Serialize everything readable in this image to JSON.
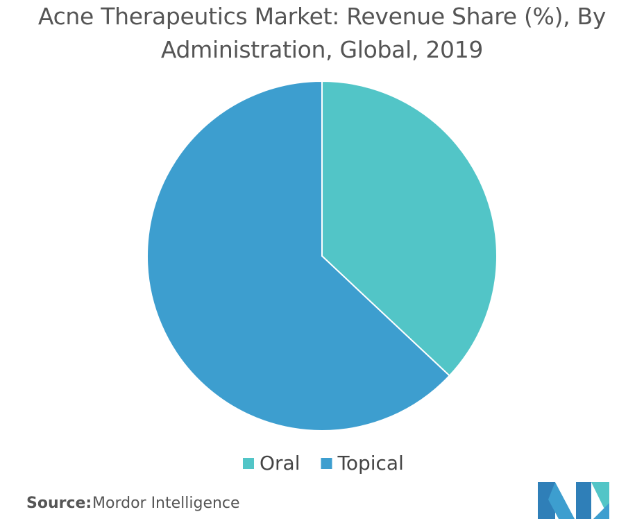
{
  "chart_data": {
    "type": "pie",
    "title": "Acne Therapeutics Market: Revenue Share (%), By Administration, Global, 2019",
    "categories": [
      "Oral",
      "Topical"
    ],
    "values": [
      37,
      63
    ],
    "colors": [
      "#52c5c7",
      "#3d9ecf"
    ],
    "legend": "bottom",
    "source_label": "Source:",
    "source": "Mordor Intelligence"
  }
}
